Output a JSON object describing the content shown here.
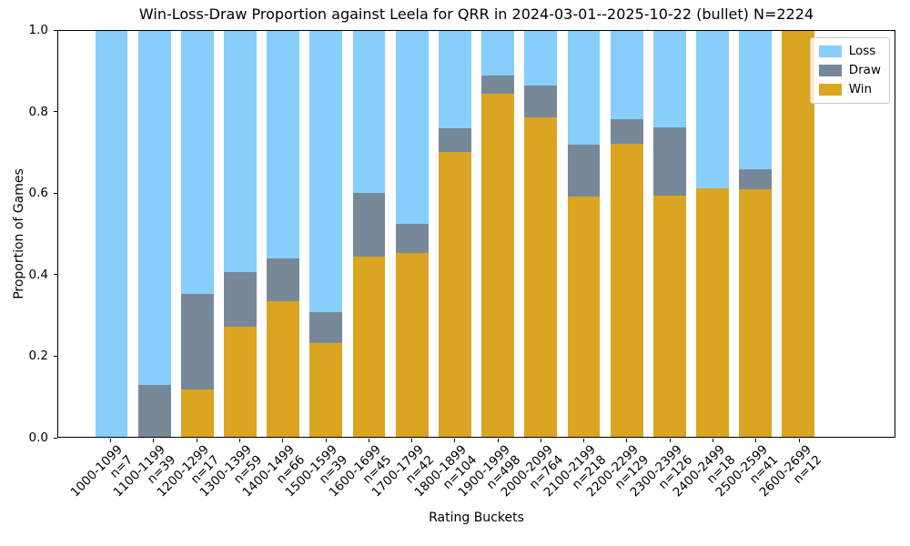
{
  "chart_data": {
    "type": "bar",
    "stacked": true,
    "title": "Win-Loss-Draw Proportion against Leela for QRR in 2024-03-01--2025-10-22 (bullet) N=2224",
    "xlabel": "Rating Buckets",
    "ylabel": "Proportion of Games",
    "ylim": [
      0,
      1
    ],
    "grid": false,
    "legend_position": "upper right",
    "ytick_labels": [
      "0.0",
      "0.2",
      "0.4",
      "0.6",
      "0.8",
      "1.0"
    ],
    "categories": [
      {
        "range": "1000-1099",
        "n": "n=7"
      },
      {
        "range": "1100-1199",
        "n": "n=39"
      },
      {
        "range": "1200-1299",
        "n": "n=17"
      },
      {
        "range": "1300-1399",
        "n": "n=59"
      },
      {
        "range": "1400-1499",
        "n": "n=66"
      },
      {
        "range": "1500-1599",
        "n": "n=39"
      },
      {
        "range": "1600-1699",
        "n": "n=45"
      },
      {
        "range": "1700-1799",
        "n": "n=42"
      },
      {
        "range": "1800-1899",
        "n": "n=104"
      },
      {
        "range": "1900-1999",
        "n": "n=498"
      },
      {
        "range": "2000-2099",
        "n": "n=764"
      },
      {
        "range": "2100-2199",
        "n": "n=218"
      },
      {
        "range": "2200-2299",
        "n": "n=129"
      },
      {
        "range": "2300-2399",
        "n": "n=126"
      },
      {
        "range": "2400-2499",
        "n": "n=18"
      },
      {
        "range": "2500-2599",
        "n": "n=41"
      },
      {
        "range": "2600-2699",
        "n": "n=12"
      }
    ],
    "series": [
      {
        "name": "Win",
        "color": "#DAA520",
        "values": [
          0.0,
          0.0,
          0.1176,
          0.2712,
          0.3333,
          0.2308,
          0.4444,
          0.4524,
          0.7019,
          0.8454,
          0.788,
          0.5917,
          0.7209,
          0.5952,
          0.6111,
          0.6098,
          1.0
        ]
      },
      {
        "name": "Draw",
        "color": "#778899",
        "values": [
          0.0,
          0.1282,
          0.2353,
          0.1356,
          0.1061,
          0.0769,
          0.1556,
          0.0714,
          0.0577,
          0.0442,
          0.0785,
          0.1284,
          0.062,
          0.1667,
          0.0,
          0.0488,
          0.0
        ]
      },
      {
        "name": "Loss",
        "color": "#87CEFA",
        "values": [
          1.0,
          0.8718,
          0.6471,
          0.5932,
          0.5606,
          0.6923,
          0.4,
          0.4762,
          0.2404,
          0.1104,
          0.1335,
          0.2798,
          0.2171,
          0.2381,
          0.3889,
          0.3415,
          0.0
        ]
      }
    ],
    "legend": [
      {
        "label": "Loss",
        "color": "#87CEFA"
      },
      {
        "label": "Draw",
        "color": "#778899"
      },
      {
        "label": "Win",
        "color": "#DAA520"
      }
    ]
  }
}
